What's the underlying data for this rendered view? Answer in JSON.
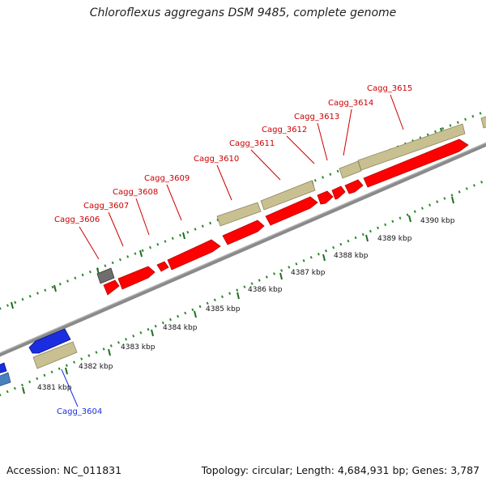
{
  "title": "Chloroflexus aggregans DSM 9485, complete genome",
  "accession_text": "Accession: NC_011831",
  "stats_text": "Topology: circular; Length: 4,684,931 bp; Genes: 3,787",
  "colors": {
    "backbone": "#8a8a8a",
    "tick_dots": "#2e8b2e",
    "tick_major": "#1f6e1f",
    "rna_gene": "#ff0000",
    "cds_feature": "#c8c090",
    "reverse_gene": "#1a2ee0",
    "reverse_cds": "#c8c090",
    "pseudo_gene": "#6e6e6e",
    "label_forward": "#cc0000",
    "label_reverse": "#1a2ee0"
  },
  "scale_ticks": [
    {
      "label": "4381 kbp"
    },
    {
      "label": "4382 kbp"
    },
    {
      "label": "4383 kbp"
    },
    {
      "label": "4384 kbp"
    },
    {
      "label": "4385 kbp"
    },
    {
      "label": "4386 kbp"
    },
    {
      "label": "4387 kbp"
    },
    {
      "label": "4388 kbp"
    },
    {
      "label": "4389 kbp"
    },
    {
      "label": "4390 kbp"
    }
  ],
  "gene_labels": [
    {
      "name": "Cagg_3604",
      "strand": "reverse"
    },
    {
      "name": "Cagg_3606",
      "strand": "forward"
    },
    {
      "name": "Cagg_3607",
      "strand": "forward"
    },
    {
      "name": "Cagg_3608",
      "strand": "forward"
    },
    {
      "name": "Cagg_3609",
      "strand": "forward"
    },
    {
      "name": "Cagg_3610",
      "strand": "forward"
    },
    {
      "name": "Cagg_3611",
      "strand": "forward"
    },
    {
      "name": "Cagg_3612",
      "strand": "forward"
    },
    {
      "name": "Cagg_3613",
      "strand": "forward"
    },
    {
      "name": "Cagg_3614",
      "strand": "forward"
    },
    {
      "name": "Cagg_3615",
      "strand": "forward"
    }
  ]
}
